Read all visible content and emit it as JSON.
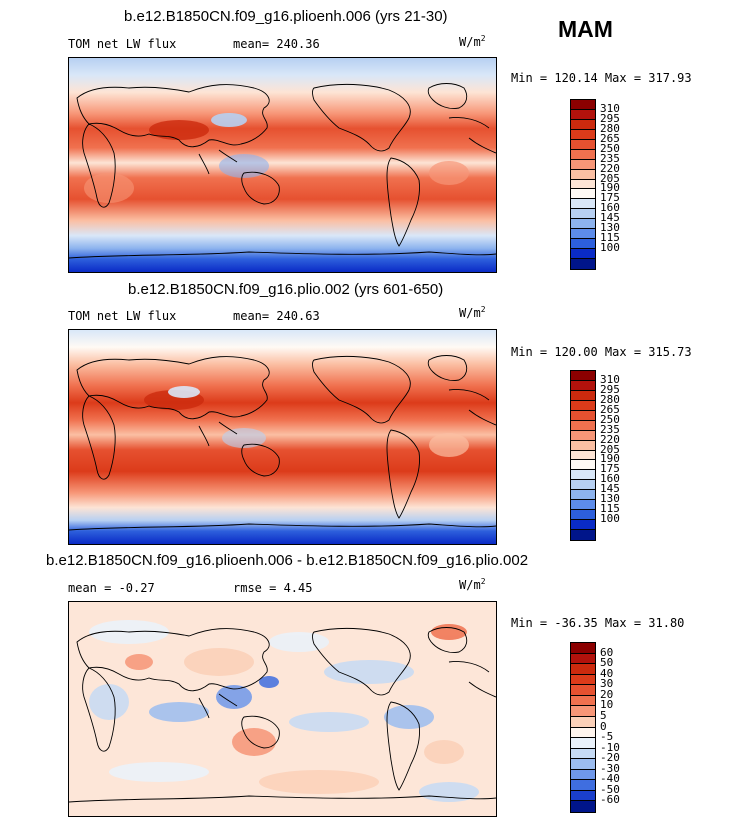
{
  "season": "MAM",
  "units_base": "W/m",
  "units_exp": "2",
  "panels": [
    {
      "title": "b.e12.B1850CN.f09_g16.plioenh.006 (yrs 21-30)",
      "subtitle_left": "TOM net LW flux",
      "subtitle_mid": "mean= 240.36",
      "minmax": "Min = 120.14 Max = 317.93",
      "legend_labels": [
        "310",
        "295",
        "280",
        "265",
        "250",
        "235",
        "220",
        "205",
        "190",
        "175",
        "160",
        "145",
        "130",
        "115",
        "100"
      ],
      "legend_colors": [
        "#8b0000",
        "#b2120c",
        "#cc2a0e",
        "#dc3b1a",
        "#e65130",
        "#f0714f",
        "#f79677",
        "#fbbfa3",
        "#fde4d5",
        "#fffaf5",
        "#d9e7f8",
        "#b7d0f2",
        "#8db3ee",
        "#5d8cea",
        "#2d5fdc",
        "#0a2bc6",
        "#00158a"
      ]
    },
    {
      "title": "b.e12.B1850CN.f09_g16.plio.002 (yrs 601-650)",
      "subtitle_left": "TOM net LW flux",
      "subtitle_mid": "mean= 240.63",
      "minmax": "Min = 120.00 Max = 315.73",
      "legend_labels": [
        "310",
        "295",
        "280",
        "265",
        "250",
        "235",
        "220",
        "205",
        "190",
        "175",
        "160",
        "145",
        "130",
        "115",
        "100"
      ],
      "legend_colors": [
        "#8b0000",
        "#b2120c",
        "#cc2a0e",
        "#dc3b1a",
        "#e65130",
        "#f0714f",
        "#f79677",
        "#fbbfa3",
        "#fde4d5",
        "#fffaf5",
        "#d9e7f8",
        "#b7d0f2",
        "#8db3ee",
        "#5d8cea",
        "#2d5fdc",
        "#0a2bc6",
        "#00158a"
      ]
    },
    {
      "title": "b.e12.B1850CN.f09_g16.plioenh.006 - b.e12.B1850CN.f09_g16.plio.002",
      "subtitle_left": "mean =  -0.27",
      "subtitle_mid": "rmse =   4.45",
      "minmax": "Min = -36.35 Max =  31.80",
      "legend_labels": [
        "60",
        "50",
        "40",
        "30",
        "20",
        "10",
        "5",
        "0",
        "-5",
        "-10",
        "-20",
        "-30",
        "-40",
        "-50",
        "-60"
      ],
      "legend_colors": [
        "#8b0000",
        "#b2120c",
        "#cc2a0e",
        "#dc3b1a",
        "#e65130",
        "#f0714f",
        "#f79677",
        "#fbd0b8",
        "#fff5ee",
        "#eaf2fb",
        "#c6dbf5",
        "#9cbdf0",
        "#6f98ea",
        "#3f6ee0",
        "#1a3fcc",
        "#00158a"
      ]
    }
  ]
}
